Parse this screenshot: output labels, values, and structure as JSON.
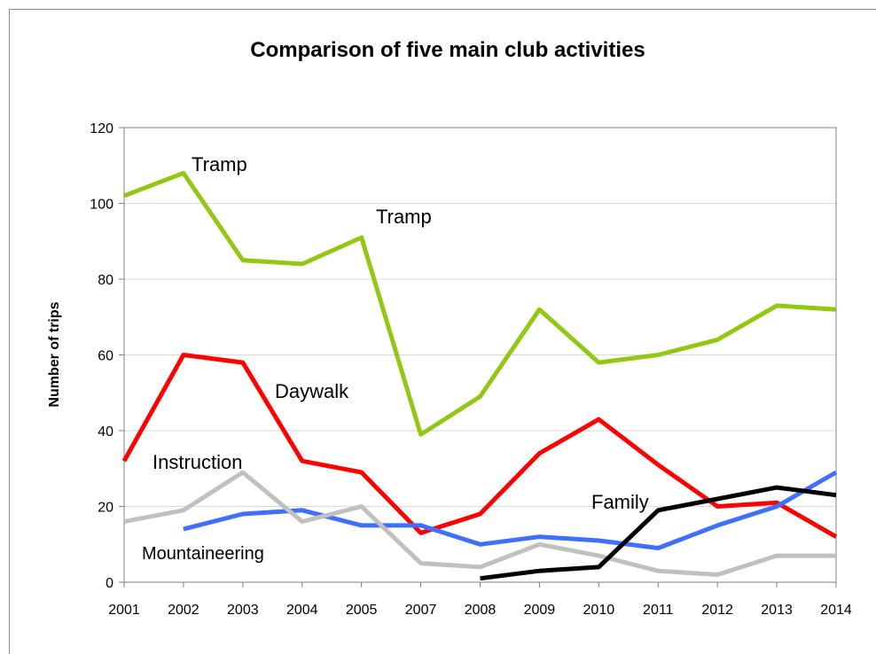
{
  "chart_data": {
    "type": "line",
    "title": "Comparison of five main club activities",
    "xlabel": "",
    "ylabel": "Number of trips",
    "categories": [
      "2001",
      "2002",
      "2003",
      "2004",
      "2005",
      "2007",
      "2008",
      "2009",
      "2010",
      "2011",
      "2012",
      "2013",
      "2014"
    ],
    "ylim": [
      0,
      120
    ],
    "yticks": [
      0,
      20,
      40,
      60,
      80,
      100,
      120
    ],
    "grid": true,
    "legend": "none (inline labels)",
    "series": [
      {
        "name": "Tramp",
        "color": "#92c814",
        "values": [
          102,
          108,
          85,
          84,
          91,
          39,
          49,
          72,
          58,
          60,
          64,
          73,
          72
        ]
      },
      {
        "name": "Daywalk",
        "color": "#ff0000",
        "values": [
          32,
          60,
          58,
          32,
          29,
          13,
          18,
          34,
          43,
          31,
          20,
          21,
          12
        ]
      },
      {
        "name": "Mountaineering",
        "color": "#3f6fff",
        "values": [
          null,
          14,
          18,
          19,
          15,
          15,
          10,
          12,
          11,
          9,
          15,
          20,
          29
        ]
      },
      {
        "name": "Instruction",
        "color": "#c0c0c0",
        "values": [
          16,
          19,
          29,
          16,
          20,
          5,
          4,
          10,
          7,
          3,
          2,
          7,
          7
        ]
      },
      {
        "name": "Family",
        "color": "#000000",
        "values": [
          null,
          null,
          null,
          null,
          null,
          null,
          1,
          3,
          4,
          19,
          22,
          25,
          23
        ]
      }
    ],
    "annotations": [
      {
        "text": "Tramp",
        "at_category": "2002"
      },
      {
        "text": "Tramp",
        "at_category": "2005"
      },
      {
        "text": "Daywalk",
        "at_category": "2004"
      },
      {
        "text": "Instruction",
        "at_category": "2002"
      },
      {
        "text": "Mountaineering",
        "at_category": "2002"
      },
      {
        "text": "Family",
        "at_category": "2010"
      }
    ]
  }
}
